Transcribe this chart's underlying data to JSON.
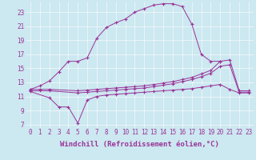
{
  "bg_color": "#cce8f0",
  "line_color": "#993399",
  "xlabel": "Windchill (Refroidissement éolien,°C)",
  "xlabel_fontsize": 6.5,
  "tick_fontsize": 5.5,
  "xlim": [
    -0.5,
    23.5
  ],
  "ylim": [
    6.5,
    24.5
  ],
  "xticks": [
    0,
    1,
    2,
    3,
    4,
    5,
    6,
    7,
    8,
    9,
    10,
    11,
    12,
    13,
    14,
    15,
    16,
    17,
    18,
    19,
    20,
    21,
    22,
    23
  ],
  "yticks": [
    7,
    9,
    11,
    13,
    15,
    17,
    19,
    21,
    23
  ],
  "line1": {
    "x": [
      0,
      1,
      2,
      3,
      4,
      5,
      6,
      7,
      8,
      9,
      10,
      11,
      12,
      13,
      14,
      15,
      16,
      17,
      18,
      19,
      20
    ],
    "y": [
      12.0,
      12.5,
      13.2,
      14.5,
      16.0,
      16.0,
      16.5,
      19.3,
      20.8,
      21.5,
      22.0,
      23.0,
      23.5,
      24.0,
      24.2,
      24.2,
      23.8,
      21.3,
      17.0,
      16.0,
      16.0
    ]
  },
  "line2": {
    "x": [
      0,
      1,
      2,
      5,
      6,
      7,
      8,
      9,
      10,
      11,
      12,
      13,
      14,
      15,
      16,
      17,
      18,
      19,
      20,
      21,
      22,
      23
    ],
    "y": [
      12.0,
      12.0,
      12.0,
      11.8,
      11.9,
      12.0,
      12.1,
      12.2,
      12.3,
      12.4,
      12.5,
      12.7,
      12.9,
      13.1,
      13.4,
      13.7,
      14.2,
      14.7,
      16.0,
      16.2,
      11.8,
      11.8
    ]
  },
  "line3": {
    "x": [
      0,
      1,
      2,
      5,
      6,
      7,
      8,
      9,
      10,
      11,
      12,
      13,
      14,
      15,
      16,
      17,
      18,
      19,
      20,
      21,
      22,
      23
    ],
    "y": [
      11.8,
      11.8,
      11.8,
      11.5,
      11.6,
      11.7,
      11.8,
      11.9,
      12.0,
      12.1,
      12.2,
      12.4,
      12.6,
      12.8,
      13.1,
      13.4,
      13.8,
      14.3,
      15.3,
      15.5,
      11.6,
      11.6
    ]
  },
  "line4": {
    "x": [
      0,
      2,
      3,
      4,
      5,
      6,
      7,
      8,
      9,
      10,
      11,
      12,
      13,
      14,
      15,
      16,
      17,
      18,
      19,
      20,
      21,
      22,
      23
    ],
    "y": [
      11.7,
      10.8,
      9.5,
      9.5,
      7.2,
      10.5,
      11.0,
      11.2,
      11.3,
      11.4,
      11.5,
      11.6,
      11.7,
      11.8,
      11.9,
      12.0,
      12.1,
      12.3,
      12.5,
      12.7,
      12.0,
      11.5,
      11.5
    ]
  }
}
